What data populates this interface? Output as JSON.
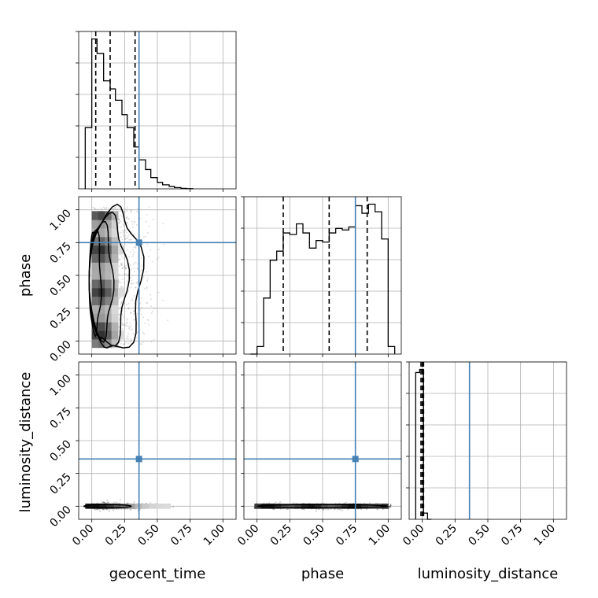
{
  "chart_data": {
    "type": "corner",
    "parameters": [
      "geocent_time",
      "phase",
      "luminosity_distance"
    ],
    "axis_range": [
      -0.1,
      1.1
    ],
    "tick_values": [
      0.0,
      0.25,
      0.5,
      0.75,
      1.0
    ],
    "tick_labels": [
      "0.00",
      "0.25",
      "0.50",
      "0.75",
      "1.00"
    ],
    "grid": true,
    "truth_color": "#4682b4",
    "hist_color": "#000000",
    "truths": {
      "geocent_time": 0.36,
      "phase": 0.75,
      "luminosity_distance": 0.36
    },
    "diagonal": [
      {
        "parameter": "geocent_time",
        "bin_edges": [
          -0.05,
          0.0,
          0.04,
          0.09,
          0.14,
          0.18,
          0.23,
          0.27,
          0.32,
          0.36,
          0.41,
          0.45,
          0.5,
          0.54,
          0.59,
          0.63,
          0.68,
          0.72,
          0.77
        ],
        "counts": [
          0.38,
          0.93,
          0.84,
          0.67,
          0.62,
          0.55,
          0.46,
          0.38,
          0.26,
          0.18,
          0.12,
          0.07,
          0.04,
          0.025,
          0.015,
          0.008,
          0.003,
          0.001
        ],
        "quantiles": [
          0.03,
          0.14,
          0.33
        ]
      },
      {
        "parameter": "phase",
        "bin_edges": [
          -0.05,
          0.0,
          0.05,
          0.1,
          0.15,
          0.2,
          0.25,
          0.3,
          0.35,
          0.4,
          0.45,
          0.5,
          0.55,
          0.6,
          0.65,
          0.7,
          0.75,
          0.8,
          0.85,
          0.9,
          0.95,
          1.0,
          1.05
        ],
        "counts": [
          0.0,
          0.05,
          0.37,
          0.62,
          0.68,
          0.8,
          0.79,
          0.86,
          0.8,
          0.7,
          0.75,
          0.74,
          0.8,
          0.83,
          0.82,
          0.84,
          0.98,
          0.93,
          0.99,
          0.94,
          0.76,
          0.05
        ],
        "quantiles": [
          0.2,
          0.55,
          0.84
        ]
      },
      {
        "parameter": "luminosity_distance",
        "bin_edges": [
          -0.05,
          -0.02,
          0.01,
          0.04,
          0.07
        ],
        "counts": [
          0.95,
          0.97,
          0.04,
          0.0
        ],
        "quantiles": [
          -0.01,
          0.0,
          0.01
        ]
      }
    ],
    "pairs": [
      {
        "x": "geocent_time",
        "y": "phase",
        "x_spread": [
          0.0,
          0.4
        ],
        "y_spread": [
          -0.05,
          1.02
        ],
        "density_peak": [
          0.06,
          0.28
        ]
      },
      {
        "x": "geocent_time",
        "y": "luminosity_distance",
        "x_spread": [
          -0.05,
          0.75
        ],
        "y_spread": [
          -0.03,
          0.03
        ],
        "density_peak": [
          0.03,
          0.0
        ]
      },
      {
        "x": "phase",
        "y": "luminosity_distance",
        "x_spread": [
          -0.02,
          1.02
        ],
        "y_spread": [
          -0.03,
          0.03
        ],
        "density_peak": [
          0.45,
          0.0
        ]
      }
    ]
  }
}
